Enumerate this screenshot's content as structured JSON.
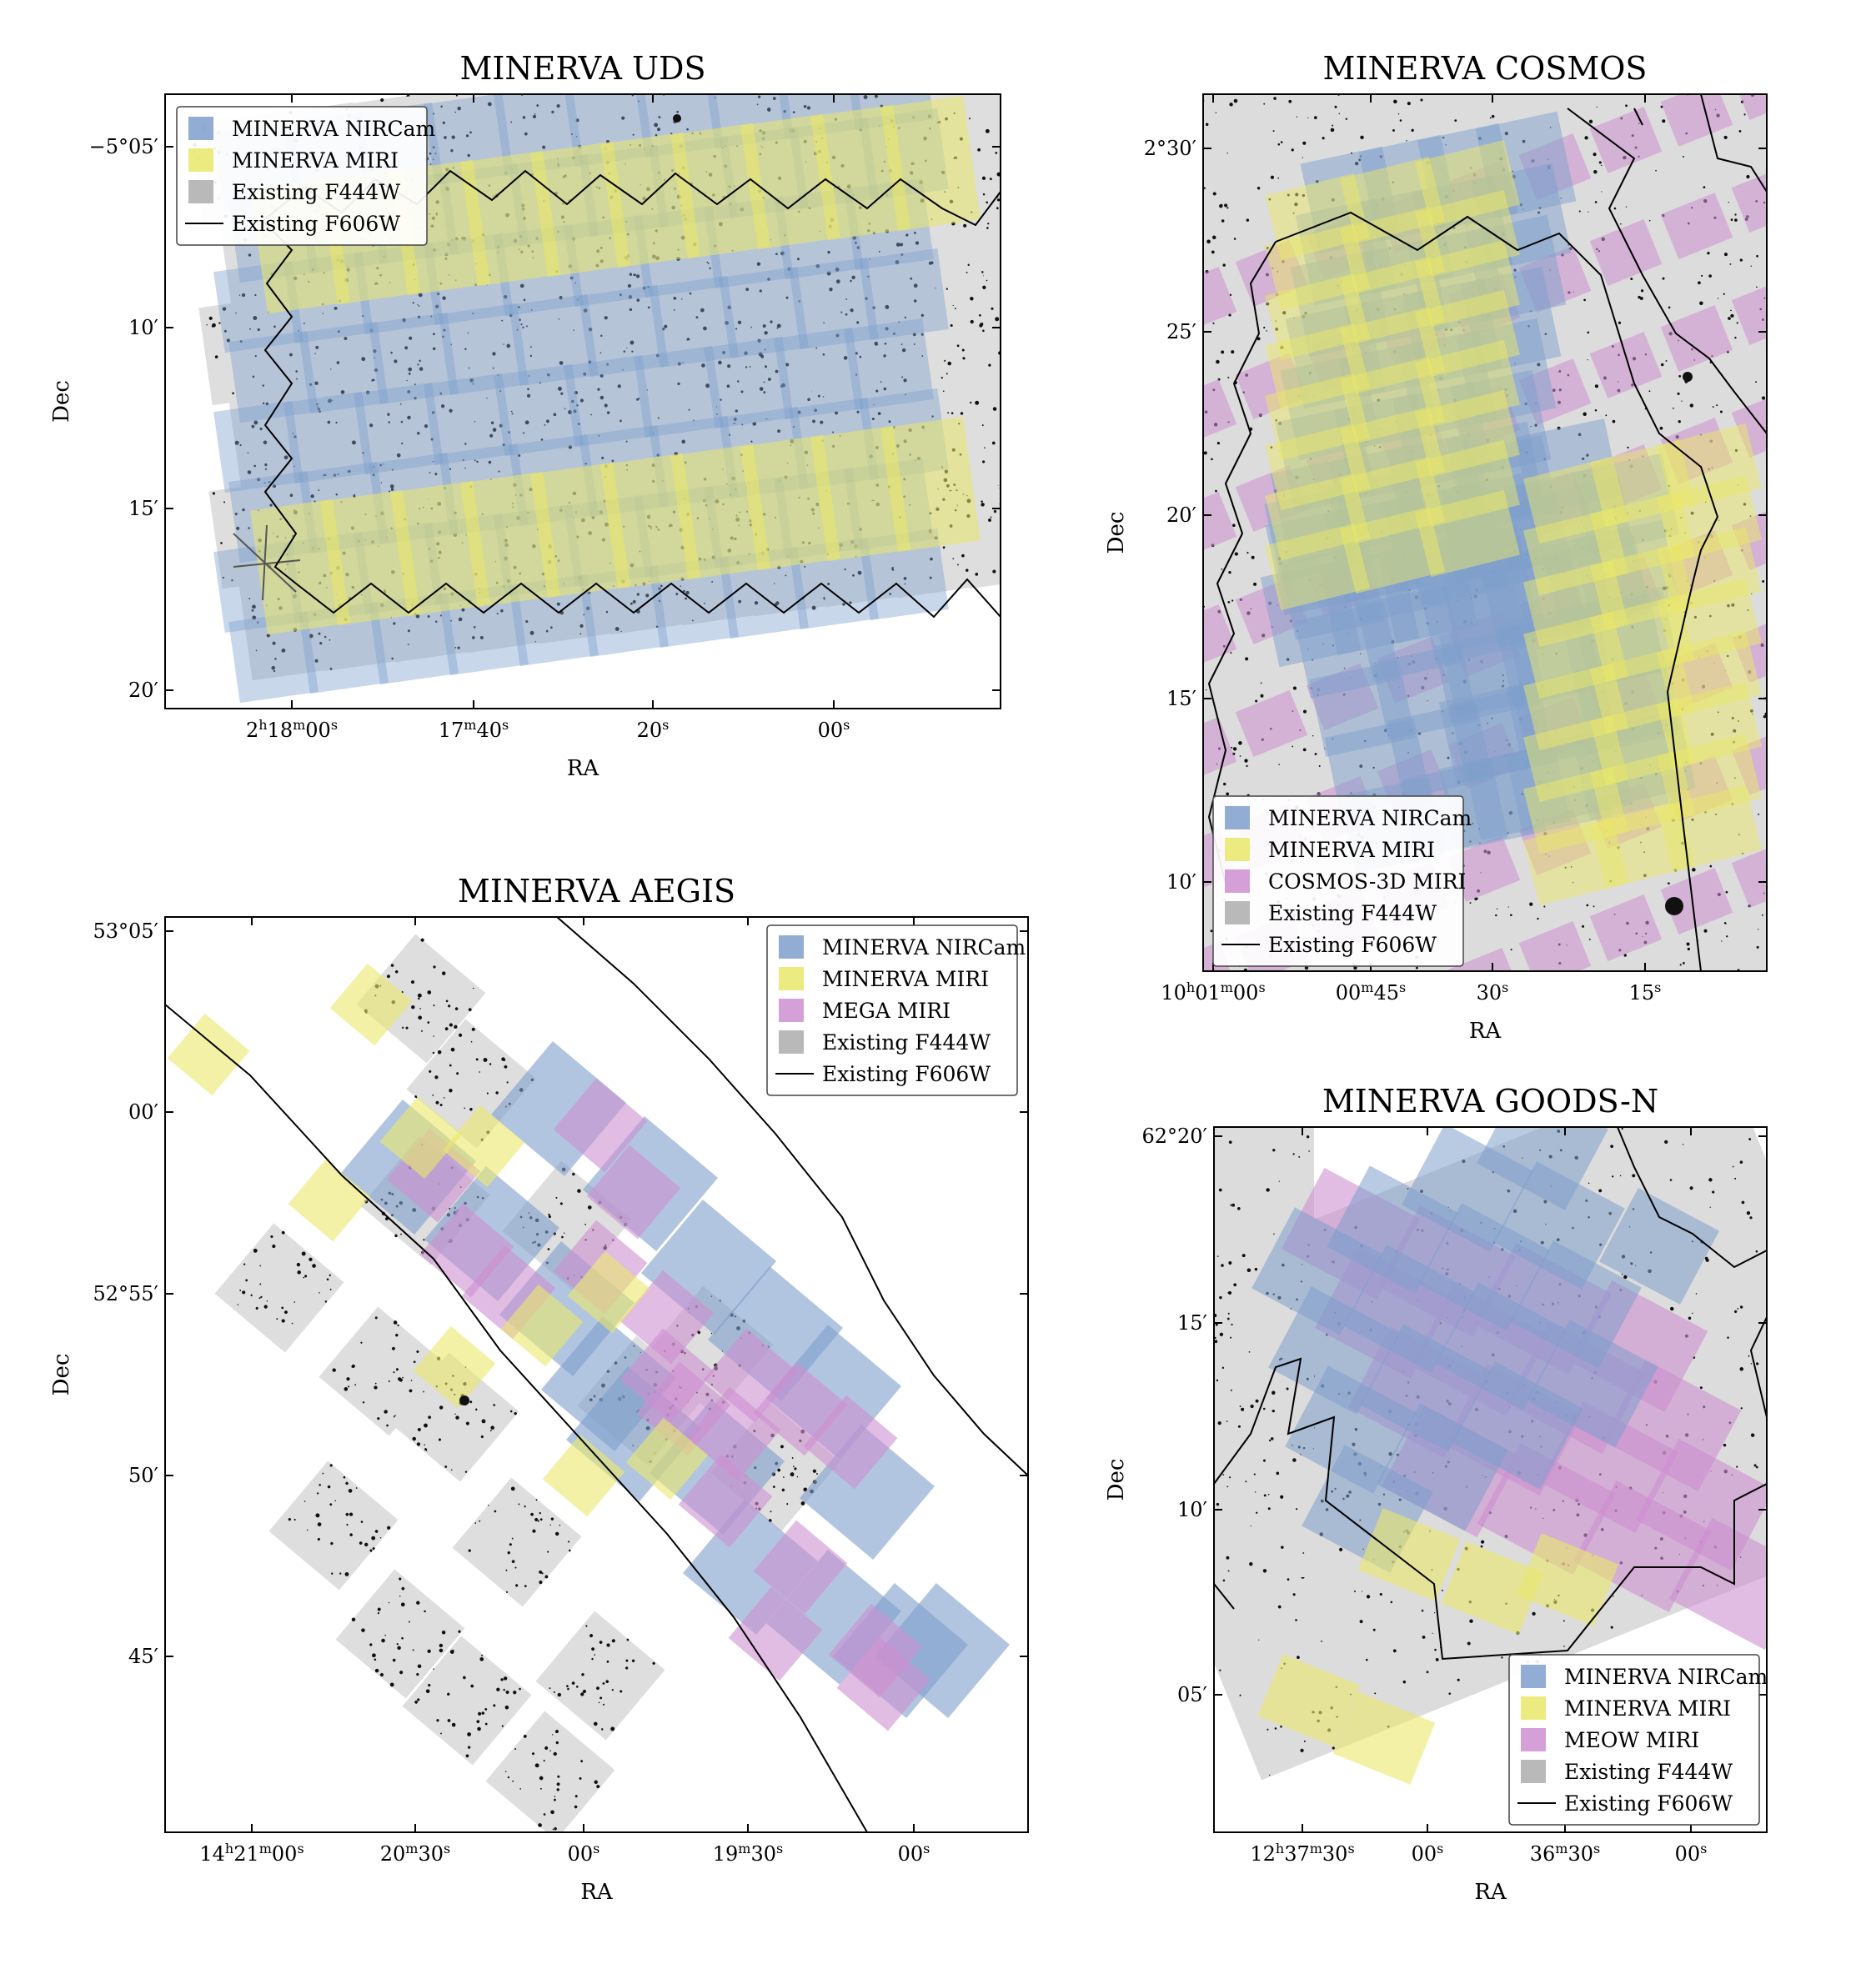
{
  "colors": {
    "nircam": "#7f9fcc",
    "miri": "#e9e76a",
    "cosmos3d": "#cd8fd0",
    "mega": "#cd8fd0",
    "meow": "#cd8fd0",
    "f444w": "#b9b9b9",
    "f606w": "#000000",
    "background_sky": "#e3e3e3"
  },
  "chart_data": [
    {
      "id": "uds",
      "type": "sky-footprint",
      "title": "MINERVA UDS",
      "xlabel": "RA",
      "ylabel": "Dec",
      "xticks": [
        {
          "label": "2h18m00s",
          "parts": [
            [
              "2",
              ""
            ],
            [
              "h",
              "sup"
            ],
            [
              "18",
              ""
            ],
            [
              "m",
              "sup"
            ],
            [
              "00",
              ""
            ],
            [
              "s",
              "sup"
            ]
          ]
        },
        {
          "label": "17m40s",
          "parts": [
            [
              "17",
              ""
            ],
            [
              "m",
              "sup"
            ],
            [
              "40",
              ""
            ],
            [
              "s",
              "sup"
            ]
          ]
        },
        {
          "label": "20s",
          "parts": [
            [
              "20",
              ""
            ],
            [
              "s",
              "sup"
            ]
          ]
        },
        {
          "label": "00s",
          "parts": [
            [
              "00",
              ""
            ],
            [
              "s",
              "sup"
            ]
          ]
        }
      ],
      "yticks": [
        "−5°05′",
        "10′",
        "15′",
        "20′"
      ],
      "legend": [
        {
          "label": "MINERVA NIRCam",
          "kind": "nircam"
        },
        {
          "label": "MINERVA MIRI",
          "kind": "miri"
        },
        {
          "label": "Existing F444W",
          "kind": "f444w"
        },
        {
          "label": "Existing F606W",
          "kind": "f606w"
        }
      ],
      "legend_position": "top-left",
      "tilt_deg": -8
    },
    {
      "id": "cosmos",
      "type": "sky-footprint",
      "title": "MINERVA COSMOS",
      "xlabel": "RA",
      "ylabel": "Dec",
      "xticks": [
        {
          "label": "10h01m00s",
          "parts": [
            [
              "10",
              ""
            ],
            [
              "h",
              "sup"
            ],
            [
              "01",
              ""
            ],
            [
              "m",
              "sup"
            ],
            [
              "00",
              ""
            ],
            [
              "s",
              "sup"
            ]
          ]
        },
        {
          "label": "00m45s",
          "parts": [
            [
              "00",
              ""
            ],
            [
              "m",
              "sup"
            ],
            [
              "45",
              ""
            ],
            [
              "s",
              "sup"
            ]
          ]
        },
        {
          "label": "30s",
          "parts": [
            [
              "30",
              ""
            ],
            [
              "s",
              "sup"
            ]
          ]
        },
        {
          "label": "15s",
          "parts": [
            [
              "15",
              ""
            ],
            [
              "s",
              "sup"
            ]
          ]
        }
      ],
      "yticks": [
        "2°30′",
        "25′",
        "20′",
        "15′",
        "10′"
      ],
      "legend": [
        {
          "label": "MINERVA NIRCam",
          "kind": "nircam"
        },
        {
          "label": "MINERVA MIRI",
          "kind": "miri"
        },
        {
          "label": "COSMOS-3D MIRI",
          "kind": "cosmos3d"
        },
        {
          "label": "Existing F444W",
          "kind": "f444w"
        },
        {
          "label": "Existing F606W",
          "kind": "f606w"
        }
      ],
      "legend_position": "bottom-left"
    },
    {
      "id": "aegis",
      "type": "sky-footprint",
      "title": "MINERVA AEGIS",
      "xlabel": "RA",
      "ylabel": "Dec",
      "xticks": [
        {
          "label": "14h21m00s",
          "parts": [
            [
              "14",
              ""
            ],
            [
              "h",
              "sup"
            ],
            [
              "21",
              ""
            ],
            [
              "m",
              "sup"
            ],
            [
              "00",
              ""
            ],
            [
              "s",
              "sup"
            ]
          ]
        },
        {
          "label": "20m30s",
          "parts": [
            [
              "20",
              ""
            ],
            [
              "m",
              "sup"
            ],
            [
              "30",
              ""
            ],
            [
              "s",
              "sup"
            ]
          ]
        },
        {
          "label": "00s",
          "parts": [
            [
              "00",
              ""
            ],
            [
              "s",
              "sup"
            ]
          ]
        },
        {
          "label": "19m30s",
          "parts": [
            [
              "19",
              ""
            ],
            [
              "m",
              "sup"
            ],
            [
              "30",
              ""
            ],
            [
              "s",
              "sup"
            ]
          ]
        },
        {
          "label": "00s",
          "parts": [
            [
              "00",
              ""
            ],
            [
              "s",
              "sup"
            ]
          ]
        }
      ],
      "yticks": [
        "53°05′",
        "00′",
        "52°55′",
        "50′",
        "45′"
      ],
      "legend": [
        {
          "label": "MINERVA NIRCam",
          "kind": "nircam"
        },
        {
          "label": "MINERVA MIRI",
          "kind": "miri"
        },
        {
          "label": "MEGA MIRI",
          "kind": "mega"
        },
        {
          "label": "Existing F444W",
          "kind": "f444w"
        },
        {
          "label": "Existing F606W",
          "kind": "f606w"
        }
      ],
      "legend_position": "top-right"
    },
    {
      "id": "goodsn",
      "type": "sky-footprint",
      "title": "MINERVA GOODS-N",
      "xlabel": "RA",
      "ylabel": "Dec",
      "xticks": [
        {
          "label": "12h37m30s",
          "parts": [
            [
              "12",
              ""
            ],
            [
              "h",
              "sup"
            ],
            [
              "37",
              ""
            ],
            [
              "m",
              "sup"
            ],
            [
              "30",
              ""
            ],
            [
              "s",
              "sup"
            ]
          ]
        },
        {
          "label": "00s",
          "parts": [
            [
              "00",
              ""
            ],
            [
              "s",
              "sup"
            ]
          ]
        },
        {
          "label": "36m30s",
          "parts": [
            [
              "36",
              ""
            ],
            [
              "m",
              "sup"
            ],
            [
              "30",
              ""
            ],
            [
              "s",
              "sup"
            ]
          ]
        },
        {
          "label": "00s",
          "parts": [
            [
              "00",
              ""
            ],
            [
              "s",
              "sup"
            ]
          ]
        }
      ],
      "yticks": [
        "62°20′",
        "15′",
        "10′",
        "05′"
      ],
      "legend": [
        {
          "label": "MINERVA NIRCam",
          "kind": "nircam"
        },
        {
          "label": "MINERVA MIRI",
          "kind": "miri"
        },
        {
          "label": "MEOW MIRI",
          "kind": "meow"
        },
        {
          "label": "Existing F444W",
          "kind": "f444w"
        },
        {
          "label": "Existing F606W",
          "kind": "f606w"
        }
      ],
      "legend_position": "bottom-right"
    }
  ]
}
